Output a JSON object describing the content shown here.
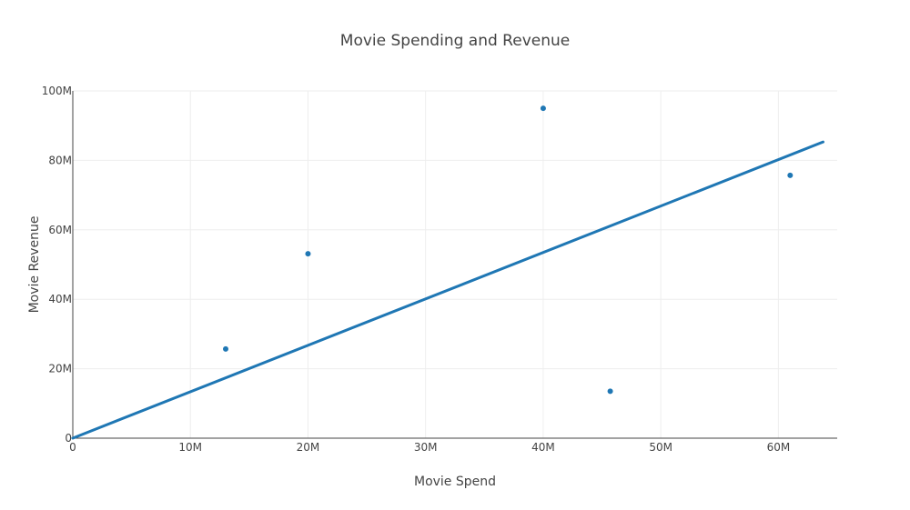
{
  "chart_data": {
    "type": "scatter",
    "title": "Movie Spending and Revenue",
    "xlabel": "Movie Spend",
    "ylabel": "Movie Revenue",
    "xlim": [
      0,
      65000000
    ],
    "ylim": [
      0,
      100000000
    ],
    "x_ticks": [
      {
        "value": 0,
        "label": "0"
      },
      {
        "value": 10000000,
        "label": "10M"
      },
      {
        "value": 20000000,
        "label": "20M"
      },
      {
        "value": 30000000,
        "label": "30M"
      },
      {
        "value": 40000000,
        "label": "40M"
      },
      {
        "value": 50000000,
        "label": "50M"
      },
      {
        "value": 60000000,
        "label": "60M"
      }
    ],
    "y_ticks": [
      {
        "value": 0,
        "label": "0"
      },
      {
        "value": 20000000,
        "label": "20M"
      },
      {
        "value": 40000000,
        "label": "40M"
      },
      {
        "value": 60000000,
        "label": "60M"
      },
      {
        "value": 80000000,
        "label": "80M"
      },
      {
        "value": 100000000,
        "label": "100M"
      }
    ],
    "grid": true,
    "legend": "none",
    "color": "#1f77b4",
    "series": [
      {
        "type": "markers",
        "x": [
          13000000,
          20000000,
          40000000,
          45700000,
          61000000
        ],
        "y": [
          25700000,
          53100000,
          95000000,
          13500000,
          75700000
        ]
      },
      {
        "type": "line",
        "x": [
          0,
          63800000
        ],
        "y": [
          0,
          85300000
        ]
      }
    ]
  }
}
